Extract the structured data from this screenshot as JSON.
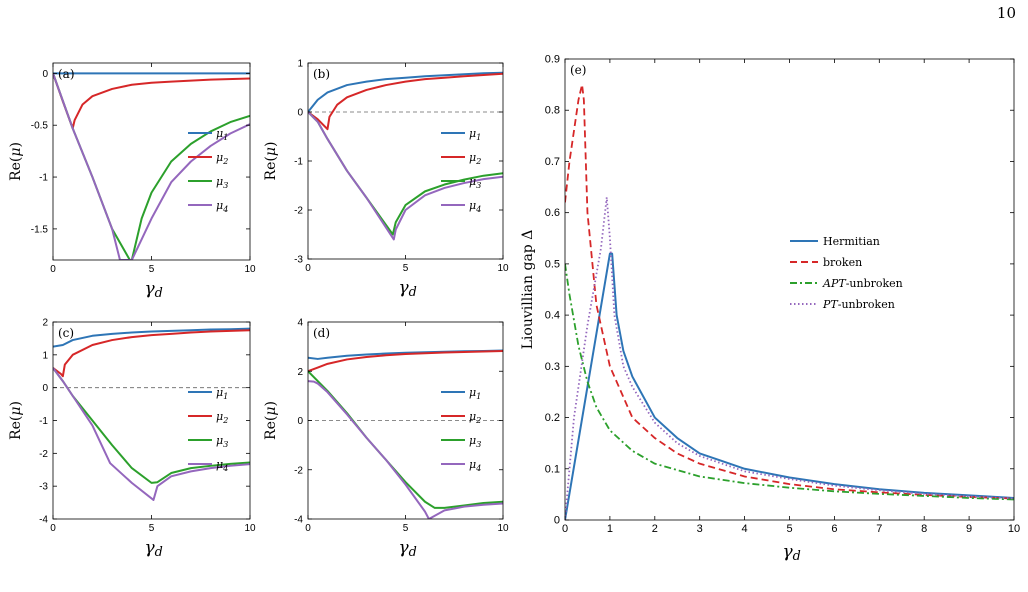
{
  "page_number": "10",
  "line_colors": {
    "mu1": "#2e75b6",
    "mu2": "#d62728",
    "mu3": "#2ca02c",
    "mu4": "#9467bd"
  },
  "gap_colors": {
    "hermitian": "#2e75b6",
    "broken": "#d62728",
    "apt": "#2ca02c",
    "pt": "#9467bd"
  },
  "chart_data": [
    {
      "panel": "(a)",
      "type": "line",
      "xlabel": "γd",
      "ylabel": "Re(μ)",
      "xlim": [
        0,
        10
      ],
      "ylim": [
        -1.8,
        0.1
      ],
      "xticks": [
        0,
        5,
        10
      ],
      "yticks": [
        0,
        -0.5,
        -1,
        -1.5
      ],
      "ytick_labels": [
        "0",
        "-0.5",
        "-1",
        "-1.5"
      ],
      "zero_line": true,
      "legend_position": "right",
      "series": [
        {
          "name": "μ1",
          "x": [
            0,
            2,
            4,
            6,
            8,
            10
          ],
          "y": [
            0,
            0,
            0,
            0,
            0,
            0
          ]
        },
        {
          "name": "μ2",
          "x": [
            0,
            0.5,
            1.0,
            1.1,
            1.5,
            2,
            3,
            4,
            5,
            6,
            8,
            10
          ],
          "y": [
            0,
            -0.27,
            -0.53,
            -0.45,
            -0.3,
            -0.22,
            -0.15,
            -0.11,
            -0.09,
            -0.08,
            -0.06,
            -0.05
          ]
        },
        {
          "name": "μ3",
          "x": [
            0,
            1.0,
            2,
            3,
            3.9,
            4.0,
            4.5,
            5,
            6,
            7,
            8,
            9,
            10
          ],
          "y": [
            0,
            -0.53,
            -1.0,
            -1.5,
            -1.8,
            -1.8,
            -1.4,
            -1.15,
            -0.85,
            -0.68,
            -0.56,
            -0.47,
            -0.41
          ]
        },
        {
          "name": "μ4",
          "x": [
            0,
            1.0,
            2,
            3,
            3.4,
            4,
            4.5,
            5,
            6,
            7,
            8,
            9,
            10
          ],
          "y": [
            0,
            -0.53,
            -1.0,
            -1.5,
            -1.8,
            -1.8,
            -1.6,
            -1.4,
            -1.05,
            -0.85,
            -0.7,
            -0.58,
            -0.49
          ]
        }
      ]
    },
    {
      "panel": "(b)",
      "type": "line",
      "xlabel": "γd",
      "ylabel": "Re(μ)",
      "xlim": [
        0,
        10
      ],
      "ylim": [
        -3,
        1
      ],
      "xticks": [
        0,
        5,
        10
      ],
      "yticks": [
        1,
        0,
        -1,
        -2,
        -3
      ],
      "ytick_labels": [
        "1",
        "0",
        "-1",
        "-2",
        "-3"
      ],
      "zero_line": true,
      "legend_position": "right",
      "series": [
        {
          "name": "μ1",
          "x": [
            0,
            0.5,
            1,
            2,
            3,
            4,
            5,
            6,
            7,
            8,
            9,
            10
          ],
          "y": [
            0,
            0.25,
            0.4,
            0.55,
            0.62,
            0.67,
            0.7,
            0.73,
            0.75,
            0.77,
            0.79,
            0.8
          ]
        },
        {
          "name": "μ2",
          "x": [
            0,
            0.5,
            1.0,
            1.1,
            1.5,
            2,
            3,
            4,
            5,
            6,
            7,
            8,
            10
          ],
          "y": [
            0,
            -0.15,
            -0.35,
            -0.1,
            0.15,
            0.3,
            0.45,
            0.55,
            0.62,
            0.67,
            0.7,
            0.73,
            0.78
          ]
        },
        {
          "name": "μ3",
          "x": [
            0,
            0.5,
            1.0,
            2,
            3,
            4.35,
            4.5,
            5,
            6,
            7,
            8,
            9,
            10
          ],
          "y": [
            0,
            -0.2,
            -0.55,
            -1.2,
            -1.75,
            -2.5,
            -2.25,
            -1.9,
            -1.62,
            -1.48,
            -1.38,
            -1.3,
            -1.25
          ]
        },
        {
          "name": "μ4",
          "x": [
            0,
            0.5,
            1.0,
            2,
            3,
            4.4,
            4.5,
            5,
            6,
            7,
            8,
            9,
            10
          ],
          "y": [
            0,
            -0.2,
            -0.55,
            -1.2,
            -1.75,
            -2.6,
            -2.4,
            -2.0,
            -1.7,
            -1.55,
            -1.45,
            -1.37,
            -1.32
          ]
        }
      ]
    },
    {
      "panel": "(c)",
      "type": "line",
      "xlabel": "γd",
      "ylabel": "Re(μ)",
      "xlim": [
        0,
        10
      ],
      "ylim": [
        -4,
        2
      ],
      "xticks": [
        0,
        5,
        10
      ],
      "yticks": [
        2,
        1,
        0,
        -1,
        -2,
        -3,
        -4
      ],
      "ytick_labels": [
        "2",
        "1",
        "0",
        "-1",
        "-2",
        "-3",
        "-4"
      ],
      "zero_line": true,
      "legend_position": "right",
      "series": [
        {
          "name": "μ1",
          "x": [
            0,
            0.5,
            1,
            2,
            3,
            4,
            5,
            6,
            7,
            8,
            9,
            10
          ],
          "y": [
            1.25,
            1.3,
            1.45,
            1.58,
            1.64,
            1.68,
            1.71,
            1.73,
            1.75,
            1.77,
            1.78,
            1.8
          ]
        },
        {
          "name": "μ2",
          "x": [
            0,
            0.4,
            0.5,
            0.6,
            1,
            2,
            3,
            4,
            5,
            6,
            7,
            8,
            10
          ],
          "y": [
            0.6,
            0.42,
            0.35,
            0.7,
            1.0,
            1.3,
            1.45,
            1.54,
            1.6,
            1.64,
            1.68,
            1.71,
            1.75
          ]
        },
        {
          "name": "μ3",
          "x": [
            0,
            0.5,
            1,
            2,
            3,
            4,
            5,
            5.3,
            6,
            7,
            8,
            9,
            10
          ],
          "y": [
            0.6,
            0.2,
            -0.25,
            -1.0,
            -1.75,
            -2.45,
            -2.9,
            -2.88,
            -2.6,
            -2.45,
            -2.38,
            -2.32,
            -2.28
          ]
        },
        {
          "name": "μ4",
          "x": [
            0,
            0.5,
            1,
            2,
            2.9,
            4,
            5.1,
            5.3,
            6,
            7,
            8,
            9,
            10
          ],
          "y": [
            0.6,
            0.2,
            -0.25,
            -1.15,
            -2.3,
            -2.9,
            -3.42,
            -3.0,
            -2.7,
            -2.55,
            -2.45,
            -2.38,
            -2.33
          ]
        }
      ]
    },
    {
      "panel": "(d)",
      "type": "line",
      "xlabel": "γd",
      "ylabel": "Re(μ)",
      "xlim": [
        0,
        10
      ],
      "ylim": [
        -4,
        4
      ],
      "xticks": [
        0,
        5,
        10
      ],
      "yticks": [
        4,
        2,
        0,
        -2,
        -4
      ],
      "ytick_labels": [
        "4",
        "2",
        "0",
        "-2",
        "-4"
      ],
      "zero_line": true,
      "legend_position": "right",
      "series": [
        {
          "name": "μ1",
          "x": [
            0,
            0.5,
            1,
            2,
            3,
            4,
            5,
            6,
            7,
            8,
            9,
            10
          ],
          "y": [
            2.55,
            2.5,
            2.55,
            2.63,
            2.68,
            2.72,
            2.75,
            2.77,
            2.79,
            2.81,
            2.82,
            2.84
          ]
        },
        {
          "name": "μ2",
          "x": [
            0,
            0.5,
            1,
            2,
            3,
            4,
            5,
            6,
            7,
            8,
            9,
            10
          ],
          "y": [
            2.0,
            2.15,
            2.3,
            2.48,
            2.58,
            2.65,
            2.7,
            2.73,
            2.76,
            2.78,
            2.8,
            2.82
          ]
        },
        {
          "name": "μ3",
          "x": [
            0,
            0.5,
            1,
            2,
            3,
            4,
            5,
            6,
            6.5,
            7,
            8,
            9,
            10
          ],
          "y": [
            2.0,
            1.6,
            1.2,
            0.3,
            -0.7,
            -1.6,
            -2.5,
            -3.3,
            -3.55,
            -3.55,
            -3.45,
            -3.35,
            -3.3
          ]
        },
        {
          "name": "μ4",
          "x": [
            0,
            0.3,
            0.5,
            1,
            2,
            3,
            4,
            5,
            6,
            6.2,
            7,
            8,
            9,
            10
          ],
          "y": [
            1.6,
            1.58,
            1.5,
            1.15,
            0.25,
            -0.7,
            -1.6,
            -2.6,
            -3.7,
            -4.0,
            -3.65,
            -3.5,
            -3.42,
            -3.37
          ]
        }
      ]
    },
    {
      "panel": "(e)",
      "type": "line",
      "xlabel": "γd",
      "ylabel": "Liouvillian gap Δ",
      "xlim": [
        0,
        10
      ],
      "ylim": [
        0,
        0.9
      ],
      "xticks": [
        0,
        1,
        2,
        3,
        4,
        5,
        6,
        7,
        8,
        9,
        10
      ],
      "yticks": [
        0,
        0.1,
        0.2,
        0.3,
        0.4,
        0.5,
        0.6,
        0.7,
        0.8,
        0.9
      ],
      "ytick_labels": [
        "0",
        "0.1",
        "0.2",
        "0.3",
        "0.4",
        "0.5",
        "0.6",
        "0.7",
        "0.8",
        "0.9"
      ],
      "legend_position": "center-right",
      "series": [
        {
          "name": "Hermitian",
          "x": [
            0,
            0.5,
            1.0,
            1.05,
            1.15,
            1.3,
            1.5,
            2,
            2.5,
            3,
            3.5,
            4,
            5,
            6,
            7,
            8,
            9,
            10
          ],
          "y": [
            0,
            0.26,
            0.52,
            0.52,
            0.4,
            0.33,
            0.28,
            0.2,
            0.16,
            0.13,
            0.115,
            0.1,
            0.083,
            0.07,
            0.06,
            0.053,
            0.048,
            0.043
          ]
        },
        {
          "name": "broken",
          "x": [
            0,
            0.1,
            0.2,
            0.3,
            0.38,
            0.42,
            0.5,
            0.7,
            1,
            1.5,
            2,
            2.5,
            3,
            4,
            5,
            6,
            7,
            8,
            9,
            10
          ],
          "y": [
            0.62,
            0.7,
            0.76,
            0.82,
            0.85,
            0.82,
            0.6,
            0.42,
            0.3,
            0.2,
            0.16,
            0.13,
            0.11,
            0.085,
            0.07,
            0.06,
            0.054,
            0.049,
            0.045,
            0.042
          ]
        },
        {
          "name": "APT-unbroken",
          "x": [
            0,
            0.1,
            0.2,
            0.3,
            0.5,
            0.7,
            1,
            1.5,
            2,
            3,
            4,
            5,
            6,
            7,
            8,
            9,
            10
          ],
          "y": [
            0.5,
            0.44,
            0.39,
            0.34,
            0.27,
            0.22,
            0.175,
            0.135,
            0.11,
            0.085,
            0.072,
            0.063,
            0.056,
            0.051,
            0.047,
            0.043,
            0.04
          ]
        },
        {
          "name": "PT-unbroken",
          "x": [
            0,
            0.2,
            0.5,
            0.8,
            0.93,
            1.0,
            1.1,
            1.3,
            1.5,
            2,
            2.5,
            3,
            4,
            5,
            6,
            7,
            8,
            9,
            10
          ],
          "y": [
            0,
            0.2,
            0.38,
            0.53,
            0.63,
            0.55,
            0.4,
            0.3,
            0.26,
            0.19,
            0.15,
            0.125,
            0.095,
            0.08,
            0.067,
            0.058,
            0.051,
            0.046,
            0.042
          ]
        }
      ]
    }
  ]
}
